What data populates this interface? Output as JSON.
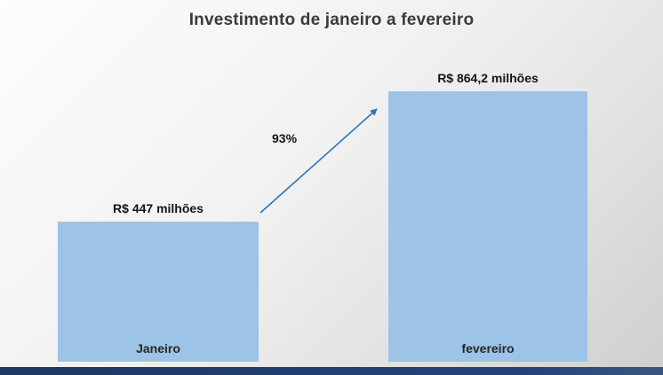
{
  "chart_data": {
    "type": "bar",
    "title": "Investimento de janeiro a fevereiro",
    "categories": [
      "Janeiro",
      "fevereiro"
    ],
    "values": [
      447,
      864.2
    ],
    "value_labels": [
      "R$ 447 milhões",
      "R$ 864,2 milhões"
    ],
    "unit": "R$ milhões",
    "ylim": [
      0,
      900
    ],
    "axes_hidden": true,
    "legend": false,
    "bar_color": "#9dc3e6",
    "annotation": {
      "text": "93%",
      "type": "growth-arrow",
      "arrow_color": "#2e75b6"
    }
  },
  "slide": {
    "accent_bar_color": "#1f3864"
  }
}
